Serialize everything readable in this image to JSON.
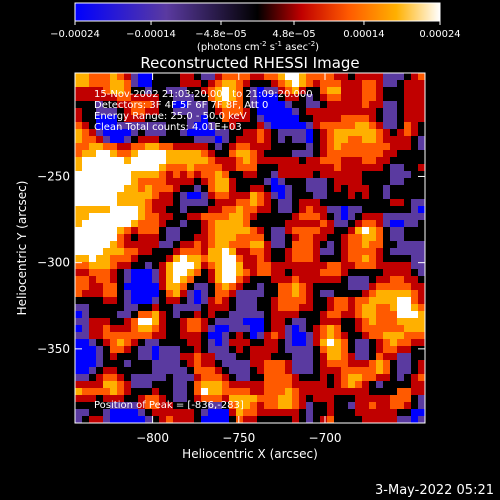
{
  "colorbar": {
    "ticks": [
      "-0.00024",
      "-0.00014",
      "-4.8e-05",
      "4.8e-05",
      "0.00014",
      "0.00024"
    ],
    "tick_values": [
      -0.00024,
      -0.00014,
      -4.8e-05,
      4.8e-05,
      0.00014,
      0.00024
    ],
    "range": [
      -0.00024,
      0.00024
    ],
    "units_main": "(photons cm",
    "units_sup1": "-2",
    "units_s": " s",
    "units_sup2": "-1",
    "units_asec": " asec",
    "units_sup3": "-2",
    "units_close": ")",
    "colors": [
      "#0000ff",
      "#5a3aa0",
      "#000000",
      "#c00000",
      "#ff5a00",
      "#ffb000",
      "#ffffff"
    ]
  },
  "chart_data": {
    "type": "heatmap",
    "title": "Reconstructed RHESSI Image",
    "xlabel": "Heliocentric X (arcsec)",
    "ylabel": "Heliocentric Y (arcsec)",
    "xlim": [
      -845,
      -642
    ],
    "ylim": [
      -393,
      -190
    ],
    "xticks": [
      -800,
      -750,
      -700
    ],
    "xtick_labels": [
      "-800",
      "-750",
      "-700"
    ],
    "yticks": [
      -350,
      -300,
      -250
    ],
    "ytick_labels": [
      "-350",
      "-300",
      "-250"
    ],
    "grid": false,
    "info_lines": [
      "15-Nov-2002 21:03:20.000 to 21:09:20.000",
      "Detectors: 3F 4F 5F 6F 7F 8F, Att 0",
      "Energy Range: 25.0 - 50.0 keV",
      "Clean     Total counts: 4.01E+03"
    ],
    "peak_label": "Position of Peak = [-836,-283]",
    "peak": [
      -836,
      -283
    ]
  },
  "timestamp": "3-May-2022 05:21"
}
